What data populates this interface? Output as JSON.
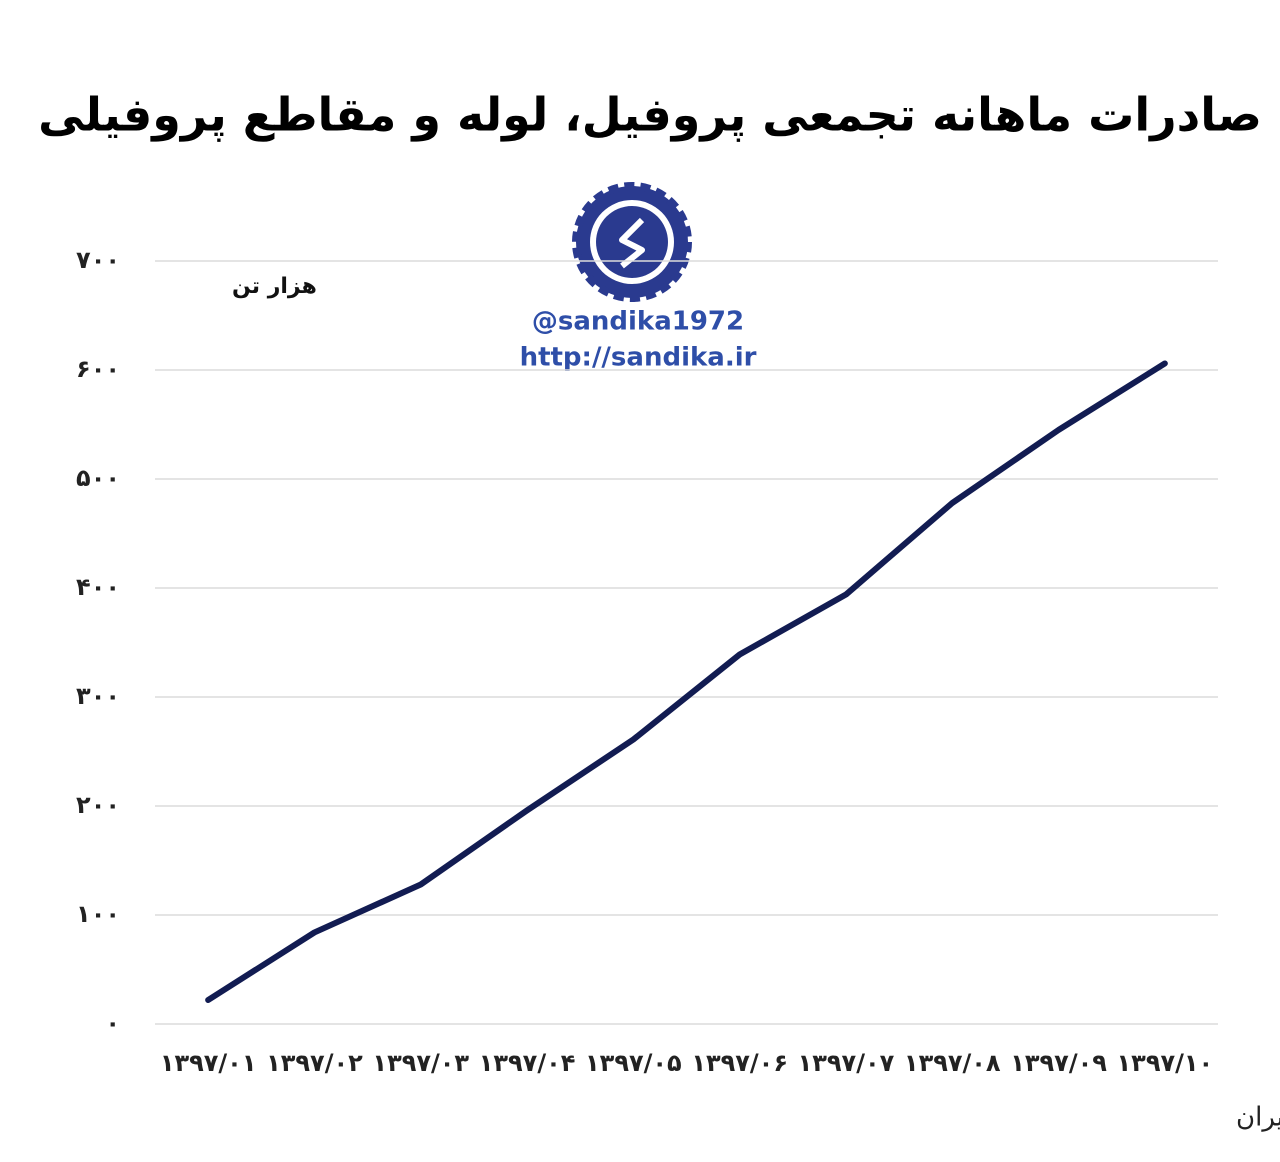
{
  "chart_data": {
    "type": "line",
    "title": "صادرات ماهانه تجمعی پروفیل، لوله و مقاطع پروفیلی",
    "y_label": "هزار تن",
    "source": "منبع: گمرک ایران",
    "watermark": [
      "@sandika1972",
      "http://sandika.ir"
    ],
    "categories": [
      "۱۳۹۷/۰۱",
      "۱۳۹۷/۰۲",
      "۱۳۹۷/۰۳",
      "۱۳۹۷/۰۴",
      "۱۳۹۷/۰۵",
      "۱۳۹۷/۰۶",
      "۱۳۹۷/۰۷",
      "۱۳۹۷/۰۸",
      "۱۳۹۷/۰۹",
      "۱۳۹۷/۱۰"
    ],
    "series": [
      {
        "color": "#121c52",
        "values": [
          22,
          84,
          128,
          196,
          261,
          339,
          394,
          478,
          545,
          606
        ]
      }
    ],
    "ylim": [
      0,
      700
    ],
    "yticks": [
      {
        "value": 0,
        "label": "۰"
      },
      {
        "value": 100,
        "label": "۱۰۰"
      },
      {
        "value": 200,
        "label": "۲۰۰"
      },
      {
        "value": 300,
        "label": "۳۰۰"
      },
      {
        "value": 400,
        "label": "۴۰۰"
      },
      {
        "value": 500,
        "label": "۵۰۰"
      },
      {
        "value": 600,
        "label": "۶۰۰"
      },
      {
        "value": 700,
        "label": "۷۰۰"
      }
    ],
    "grid": true
  }
}
